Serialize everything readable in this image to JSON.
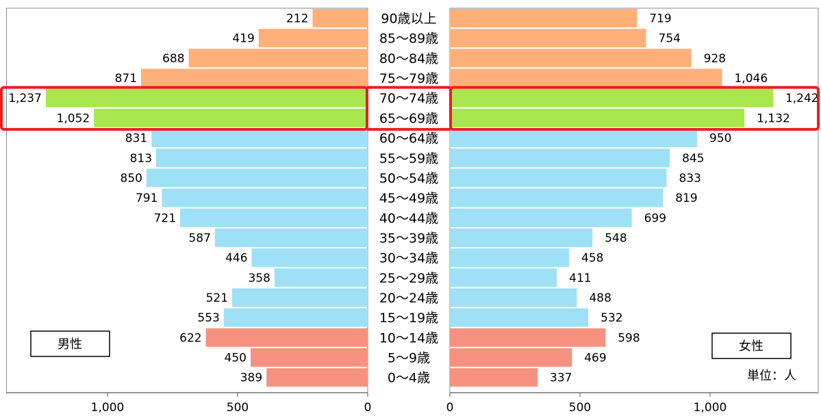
{
  "chart_data": {
    "type": "bar",
    "categories": [
      "90歳以上",
      "85～89歳",
      "80～84歳",
      "75～79歳",
      "70～74歳",
      "65～69歳",
      "60～64歳",
      "55～59歳",
      "50～54歳",
      "45～49歳",
      "40～44歳",
      "35～39歳",
      "30～34歳",
      "25～29歳",
      "20～24歳",
      "15～19歳",
      "10～14歳",
      "5～9歳",
      "0～4歳"
    ],
    "series": [
      {
        "name": "男性",
        "side": "left",
        "values": [
          212,
          419,
          688,
          871,
          1237,
          1052,
          831,
          813,
          850,
          791,
          721,
          587,
          446,
          358,
          521,
          553,
          622,
          450,
          389
        ],
        "labels": [
          "212",
          "419",
          "688",
          "871",
          "1,237",
          "1,052",
          "831",
          "813",
          "850",
          "791",
          "721",
          "587",
          "446",
          "358",
          "521",
          "553",
          "622",
          "450",
          "389"
        ]
      },
      {
        "name": "女性",
        "side": "right",
        "values": [
          719,
          754,
          928,
          1046,
          1242,
          1132,
          950,
          845,
          833,
          819,
          699,
          548,
          458,
          411,
          488,
          532,
          598,
          469,
          337
        ],
        "labels": [
          "719",
          "754",
          "928",
          "1,046",
          "1,242",
          "1,132",
          "950",
          "845",
          "833",
          "819",
          "699",
          "548",
          "458",
          "411",
          "488",
          "532",
          "598",
          "469",
          "337"
        ]
      }
    ],
    "row_colors": [
      "#ffb07a",
      "#ffb07a",
      "#ffb07a",
      "#ffb07a",
      "#a8e64e",
      "#a8e64e",
      "#9ee0f6",
      "#9ee0f6",
      "#9ee0f6",
      "#9ee0f6",
      "#9ee0f6",
      "#9ee0f6",
      "#9ee0f6",
      "#9ee0f6",
      "#9ee0f6",
      "#9ee0f6",
      "#f7917f",
      "#f7917f",
      "#f7917f"
    ],
    "highlight_rows": [
      4,
      5
    ],
    "highlight_color": "#ee1c1c",
    "xlim": [
      0,
      1400
    ],
    "x_ticks": [
      0,
      500,
      1000
    ],
    "x_tick_labels": [
      "0",
      "500",
      "1,000"
    ],
    "unit_label": "単位：人",
    "grid": false
  }
}
